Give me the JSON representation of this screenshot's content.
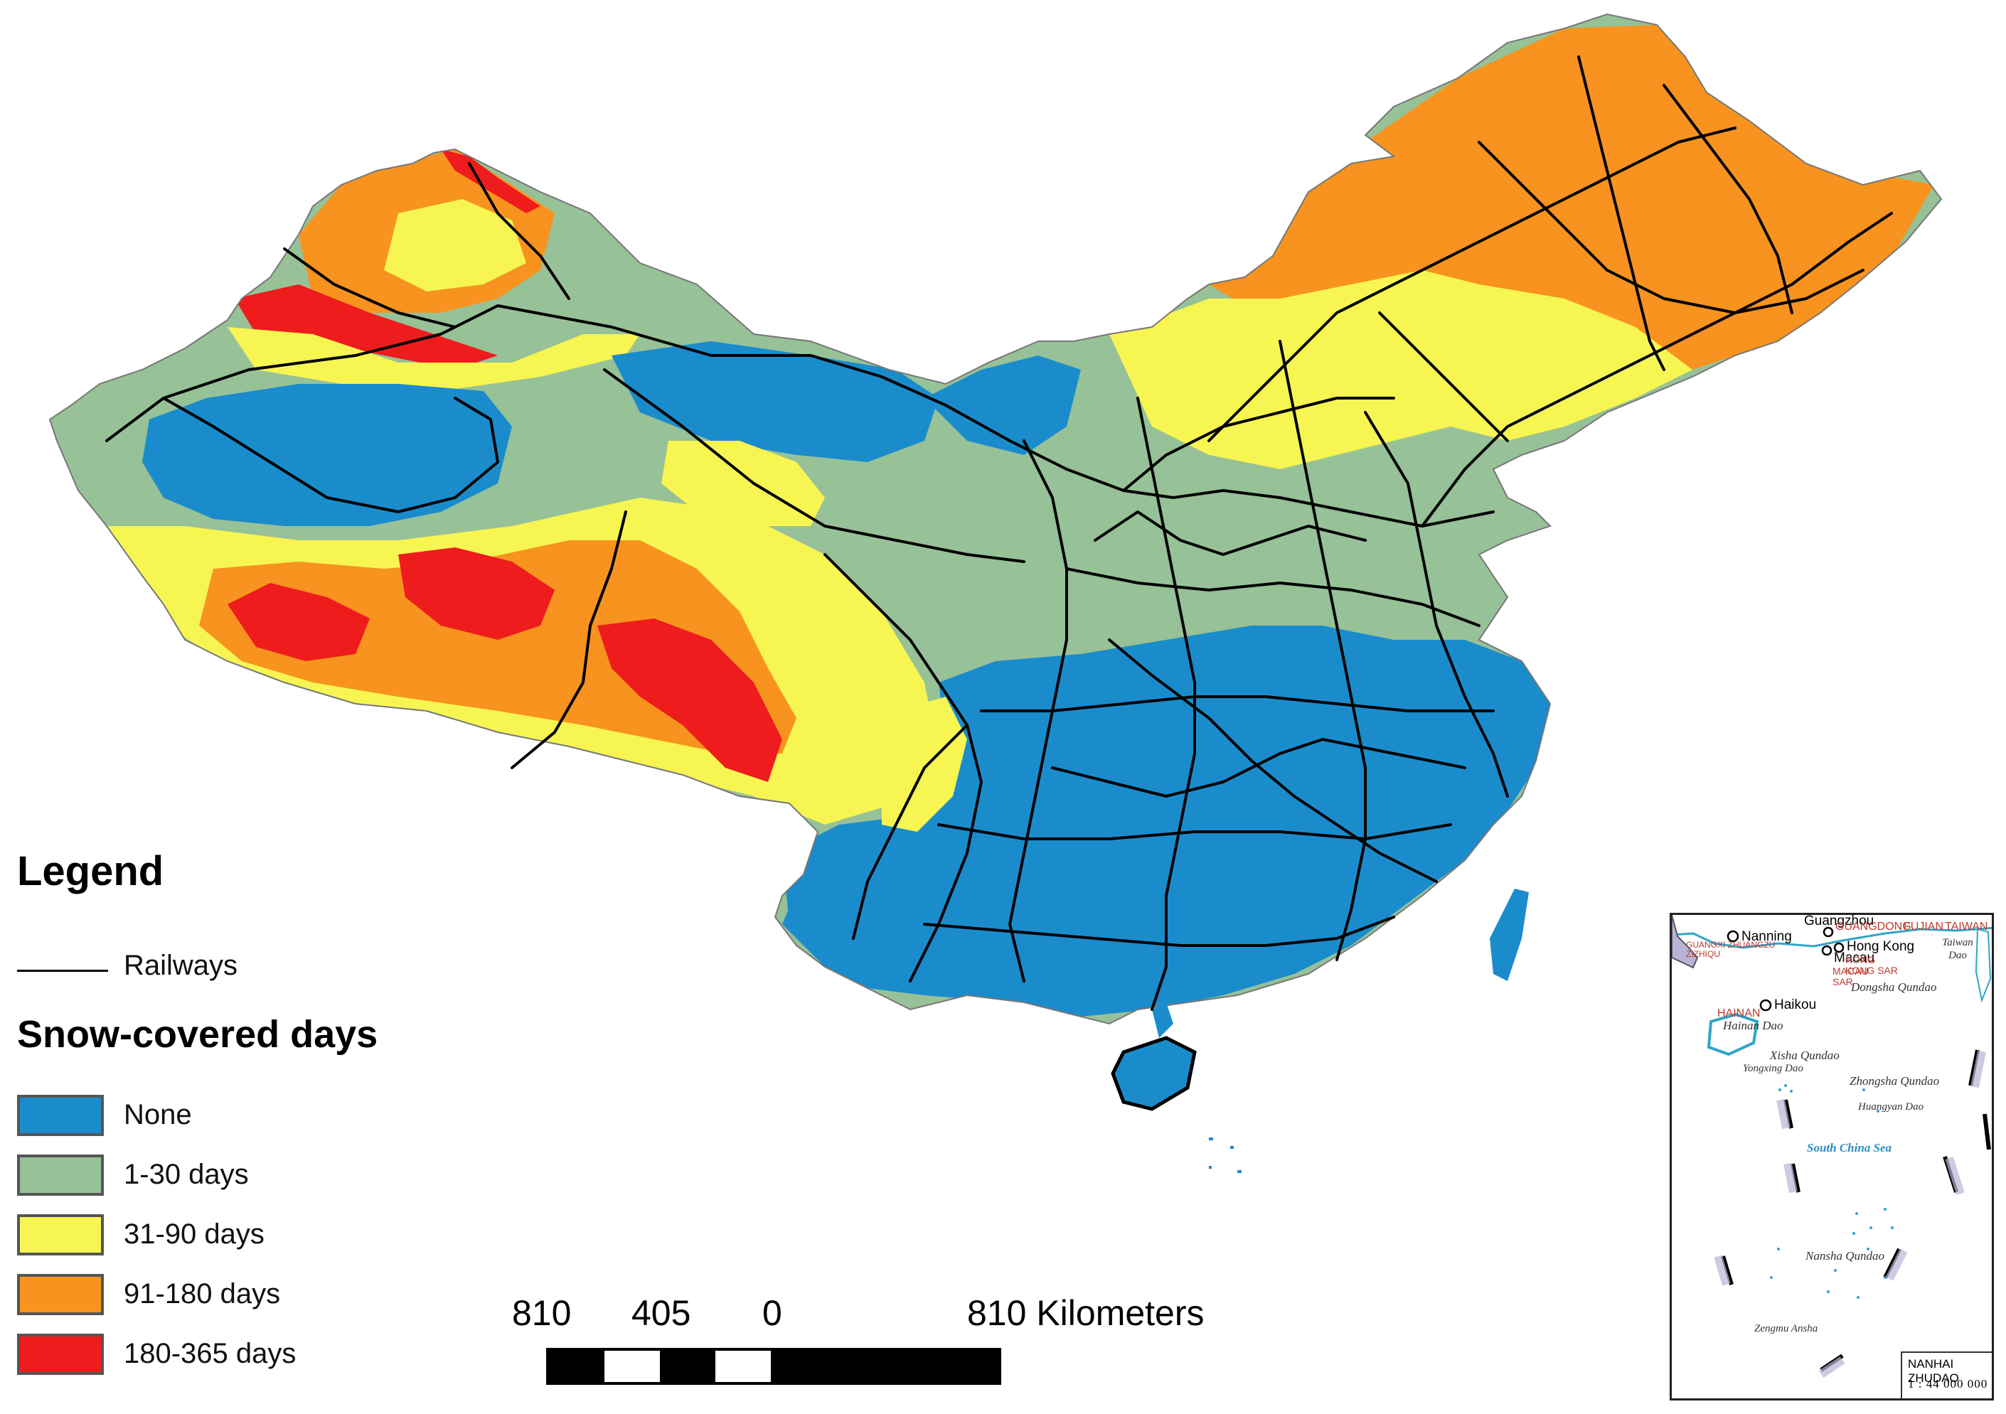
{
  "colors": {
    "none": "#1a8ccc",
    "d1_30": "#97c197",
    "d31_90": "#f7f552",
    "d91_180": "#f7931e",
    "d180_365": "#ee1c1c",
    "railway": "#000000"
  },
  "legend": {
    "title": "Legend",
    "railways_label": "Railways",
    "snow_title": "Snow-covered days",
    "classes": [
      {
        "label": "None",
        "color": "#1a8ccc"
      },
      {
        "label": "1-30 days",
        "color": "#97c197"
      },
      {
        "label": "31-90 days",
        "color": "#f7f552"
      },
      {
        "label": "91-180 days",
        "color": "#f7931e"
      },
      {
        "label": "180-365 days",
        "color": "#ee1c1c"
      }
    ]
  },
  "scale": {
    "label_810_left": "810",
    "label_405": "405",
    "label_0": "0",
    "label_810_right": "810 Kilometers"
  },
  "inset": {
    "guangzhou": "Guangzhou",
    "guangdong": "GUANGDONG",
    "fujian": "FUJIAN",
    "taiwan_region": "TAIWAN",
    "nanning": "Nanning",
    "guangxi": "GUANGXI ZHUANGZU ZIZHIQU",
    "macau": "Macau",
    "macau_sar": "MACAU SAR",
    "hong_kong": "Hong Kong",
    "hong_kong_sar": "HONG KONG SAR",
    "taiwan_dao": "Taiwan Dao",
    "haikou": "Haikou",
    "hainan": "HAINAN",
    "hainan_dao": "Hainan Dao",
    "dongsha": "Dongsha Qundao",
    "xisha": "Xisha Qundao",
    "yongxing": "Yongxing Dao",
    "zhongsha": "Zhongsha Qundao",
    "huangyan": "Huangyan Dao",
    "south_china_sea": "South China Sea",
    "nansha": "Nansha Qundao",
    "zengmu": "Zengmu Ansha",
    "caption_name": "NANHAI ZHUDAO",
    "caption_scale": "1 : 44 000 000"
  }
}
